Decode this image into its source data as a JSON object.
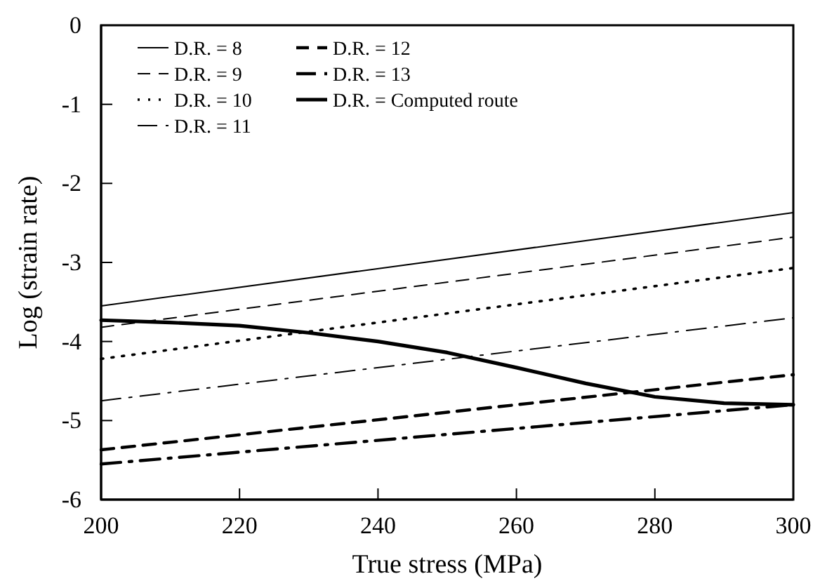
{
  "chart_data": {
    "type": "line",
    "xlabel": "True stress (MPa)",
    "ylabel": "Log (strain rate)",
    "xlim": [
      200,
      300
    ],
    "ylim": [
      -6,
      0
    ],
    "xticks": [
      200,
      220,
      240,
      260,
      280,
      300
    ],
    "yticks": [
      -6,
      -5,
      -4,
      -3,
      -2,
      -1,
      0
    ],
    "grid": false,
    "legend": "top left",
    "marker": "none",
    "series": [
      {
        "name": "D.R. = 8",
        "color": "#000000",
        "x": [
          200,
          300
        ],
        "values": [
          -3.55,
          -2.37
        ],
        "line_style": "solid"
      },
      {
        "name": "D.R. = 9",
        "color": "#000000",
        "x": [
          200,
          300
        ],
        "values": [
          -3.82,
          -2.68
        ],
        "line_style": "dashed"
      },
      {
        "name": "D.R. = 10",
        "color": "#000000",
        "x": [
          200,
          300
        ],
        "values": [
          -4.22,
          -3.07
        ],
        "line_style": "dotted"
      },
      {
        "name": "D.R. = 11",
        "color": "#000000",
        "x": [
          200,
          300
        ],
        "values": [
          -4.75,
          -3.7
        ],
        "line_style": "dashdot"
      },
      {
        "name": "D.R. = 12",
        "color": "#000000",
        "x": [
          200,
          300
        ],
        "values": [
          -5.37,
          -4.42
        ],
        "line_style": "dashed"
      },
      {
        "name": "D.R. = 13",
        "color": "#000000",
        "x": [
          200,
          300
        ],
        "values": [
          -5.55,
          -4.8
        ],
        "line_style": "dashdot"
      },
      {
        "name": "D.R. = Computed route",
        "color": "#000000",
        "x": [
          200,
          210,
          220,
          230,
          240,
          250,
          260,
          270,
          280,
          290,
          300
        ],
        "values": [
          -3.73,
          -3.76,
          -3.8,
          -3.89,
          -4.0,
          -4.14,
          -4.33,
          -4.53,
          -4.7,
          -4.78,
          -4.8
        ],
        "line_style": "solid"
      }
    ]
  }
}
